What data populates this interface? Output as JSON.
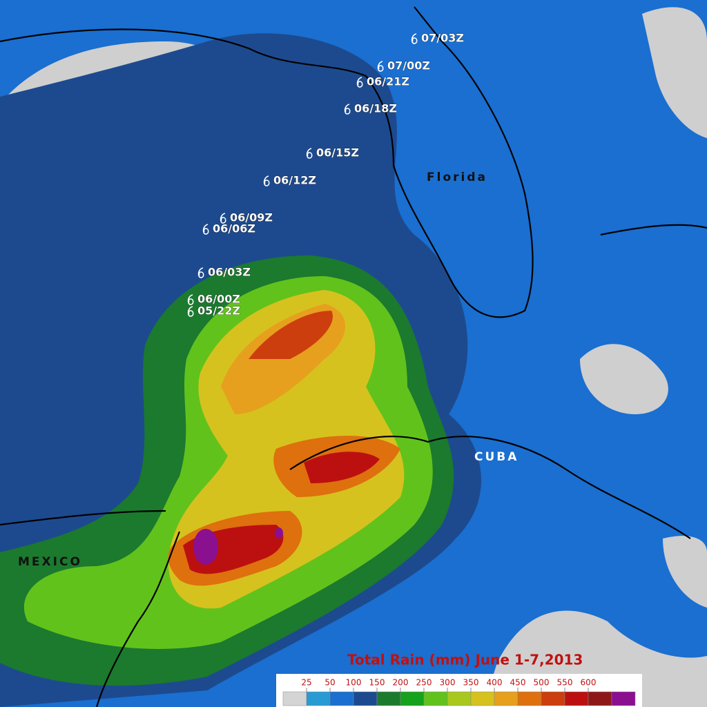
{
  "title": "Total Rain  (mm) June 1-7,2013",
  "places": [
    "Florida",
    "CUBA",
    "MEXICO"
  ],
  "track": [
    "07/03Z",
    "07/00Z",
    "06/21Z",
    "06/18Z",
    "06/15Z",
    "06/12Z",
    "06/09Z",
    "06/06Z",
    "06/03Z",
    "06/00Z",
    "05/22Z"
  ],
  "legend": {
    "ticks": [
      25,
      50,
      100,
      150,
      200,
      250,
      300,
      350,
      400,
      450,
      500,
      550,
      600
    ],
    "colors": [
      "#d4d4d4",
      "#2a9ad2",
      "#1a6fd0",
      "#1d4a8e",
      "#1b7a2e",
      "#16a21c",
      "#62c21c",
      "#a8c81e",
      "#d6c21e",
      "#e6a01e",
      "#de700e",
      "#cc3e0e",
      "#bc1010",
      "#8e1818",
      "#8a1090"
    ]
  }
}
